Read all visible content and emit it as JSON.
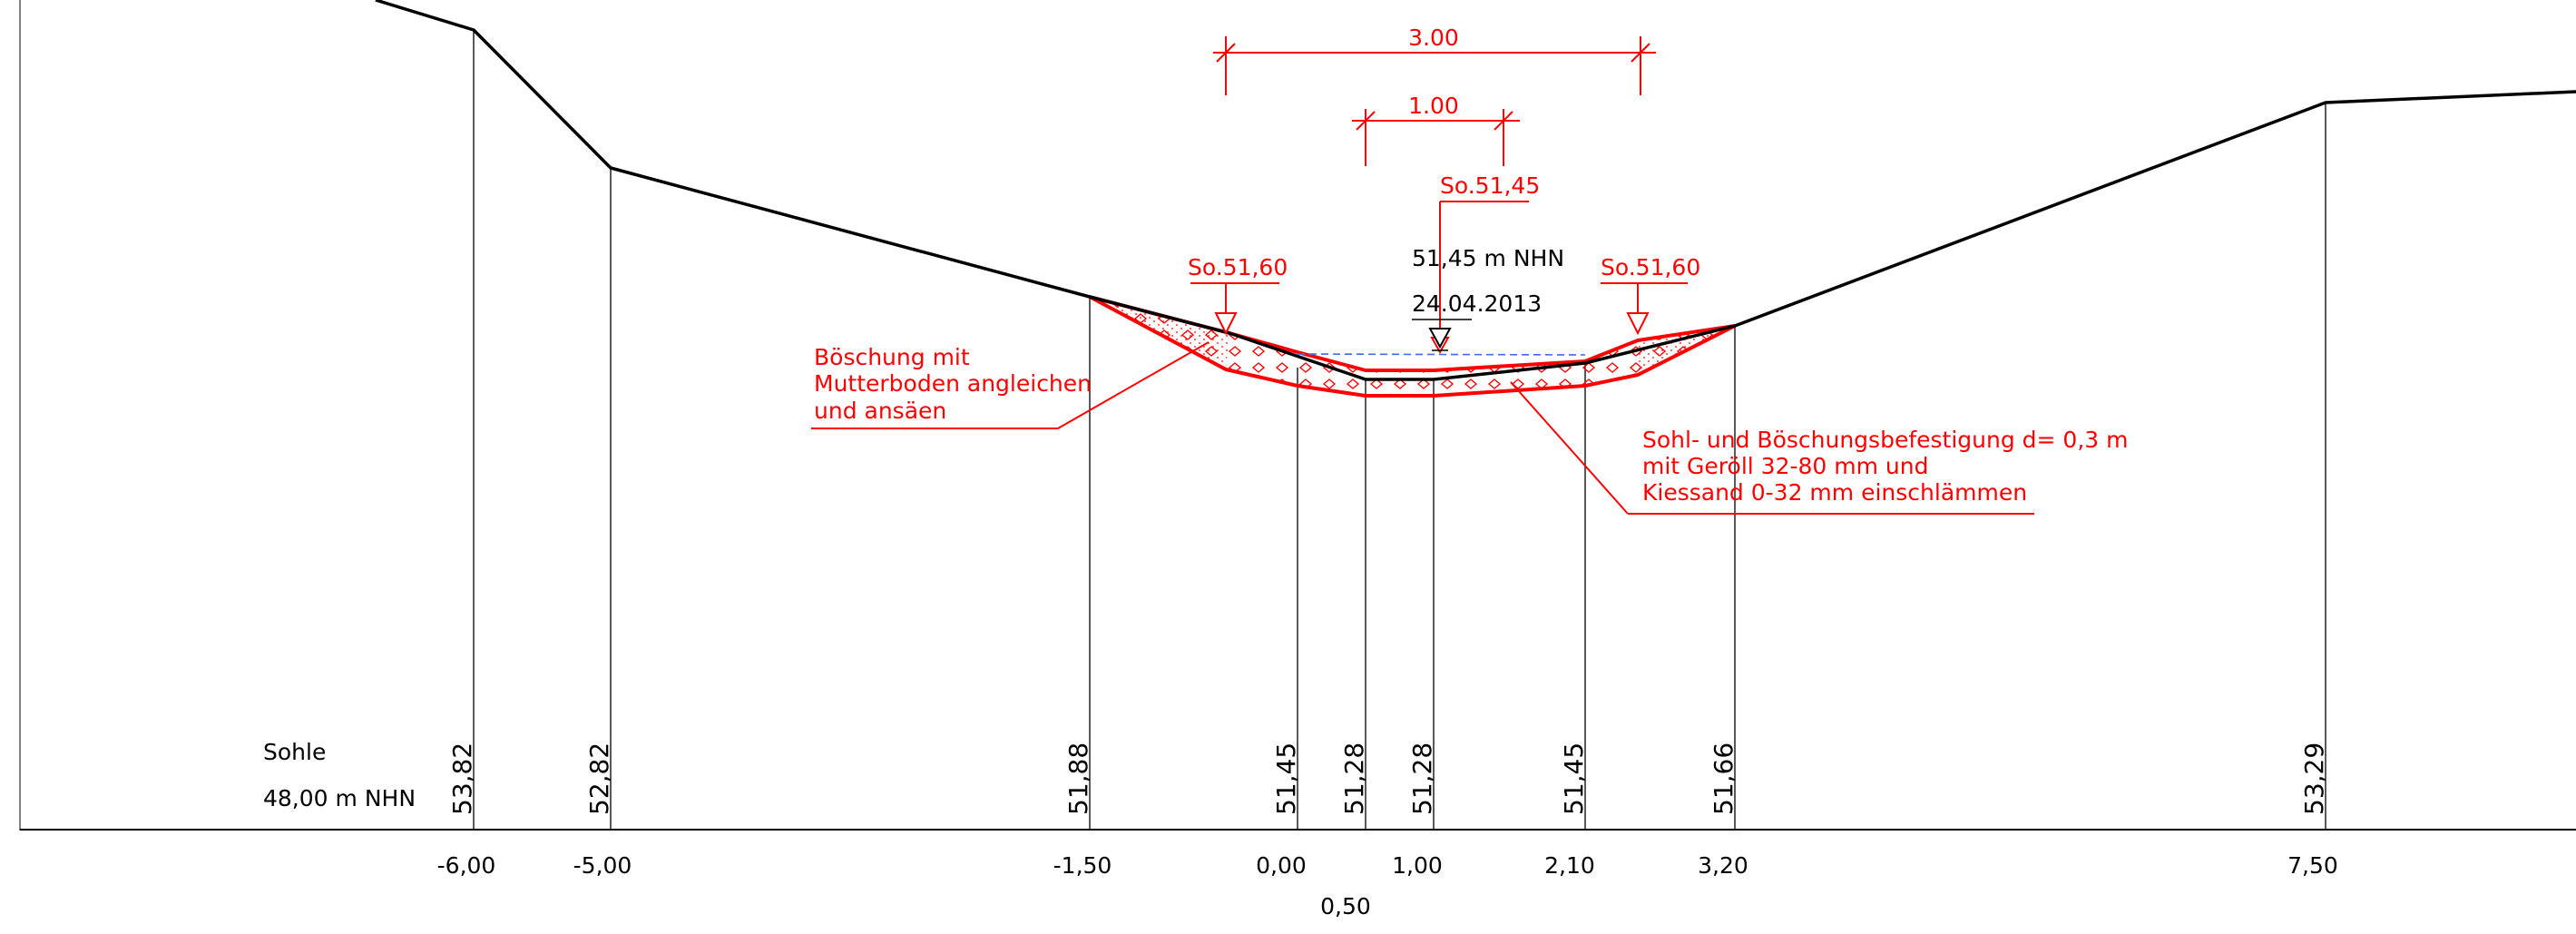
{
  "colors": {
    "ink": "#000000",
    "annotation": "#ff0000",
    "water": "#3a6cf0",
    "background": "#ffffff"
  },
  "reference": {
    "label": "Sohle",
    "datum": "48,00 m NHN"
  },
  "stations": [
    {
      "offset": "-6,00",
      "elevation": "53,82"
    },
    {
      "offset": "-5,00",
      "elevation": "52,82"
    },
    {
      "offset": "-1,50",
      "elevation": "51,88"
    },
    {
      "offset": "0,00",
      "elevation": "51,45"
    },
    {
      "offset": "0,50",
      "elevation": "51,28"
    },
    {
      "offset": "1,00",
      "elevation": "51,28"
    },
    {
      "offset": "2,10",
      "elevation": "51,45"
    },
    {
      "offset": "3,20",
      "elevation": "51,66"
    },
    {
      "offset": "7,50",
      "elevation": "53,29"
    }
  ],
  "dimensions": {
    "top_width": "3.00",
    "bottom_width": "1.00"
  },
  "sole_marks": {
    "left": "So.51,60",
    "center": "So.51,45",
    "right": "So.51,60"
  },
  "water_level": {
    "value": "51,45 m NHN",
    "date": "24.04.2013"
  },
  "notes": {
    "slope": [
      "Böschung mit",
      "Mutterboden angleichen",
      "und ansäen"
    ],
    "protection": [
      "Sohl- und Böschungsbefestigung d= 0,3 m",
      "mit Geröll 32-80 mm und",
      "Kiessand 0-32 mm einschlämmen"
    ]
  }
}
